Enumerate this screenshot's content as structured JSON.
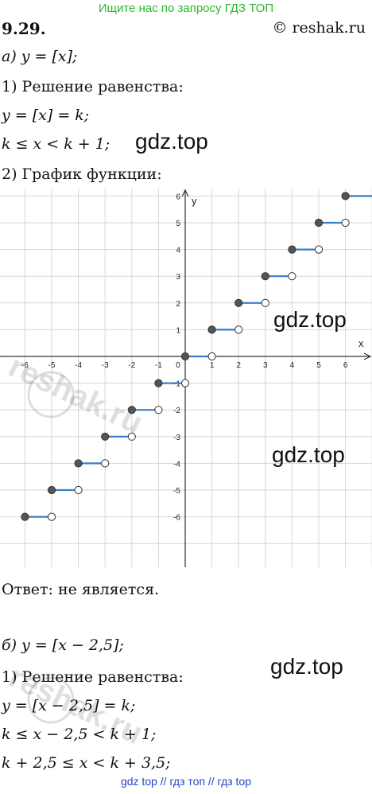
{
  "banner": "Ищите нас по запросу ГДЗ ТОП",
  "problem_number": "9.29.",
  "site": "© reshak.ru",
  "part_a": {
    "label": "а) y = [x];",
    "step1": "1) Решение равенства:",
    "eq1": "y = [x] = k;",
    "eq2": "k ≤ x < k + 1;",
    "step2": "2) График функции:"
  },
  "watermark": "gdz.top",
  "answer": "Ответ:  не является.",
  "part_b": {
    "label": "б) y = [x − 2,5];",
    "step1": "1) Решение равенства:",
    "eq1": "y = [x − 2,5] = k;",
    "eq2": "k ≤ x − 2,5 < k + 1;",
    "eq3": "k + 2,5 ≤ x < k + 3,5;"
  },
  "footer": "gdz top  //  гдз топ  //  гдз top",
  "reshak_watermark": "reshak.ru",
  "chart_data": {
    "type": "line",
    "xlabel": "x",
    "ylabel": "y",
    "xlim": [
      -7,
      7
    ],
    "ylim": [
      -7,
      7
    ],
    "xticks": [
      -6,
      -5,
      -4,
      -3,
      -2,
      -1,
      0,
      1,
      2,
      3,
      4,
      5,
      6
    ],
    "yticks": [
      -6,
      -5,
      -4,
      -3,
      -2,
      -1,
      1,
      2,
      3,
      4,
      5,
      6
    ],
    "grid": true,
    "segments": [
      {
        "x0": -6,
        "x1": -5,
        "y": -6
      },
      {
        "x0": -5,
        "x1": -4,
        "y": -5
      },
      {
        "x0": -4,
        "x1": -3,
        "y": -4
      },
      {
        "x0": -3,
        "x1": -2,
        "y": -3
      },
      {
        "x0": -2,
        "x1": -1,
        "y": -2
      },
      {
        "x0": -1,
        "x1": 0,
        "y": -1
      },
      {
        "x0": 0,
        "x1": 1,
        "y": 0
      },
      {
        "x0": 1,
        "x1": 2,
        "y": 1
      },
      {
        "x0": 2,
        "x1": 3,
        "y": 2
      },
      {
        "x0": 3,
        "x1": 4,
        "y": 3
      },
      {
        "x0": 4,
        "x1": 5,
        "y": 4
      },
      {
        "x0": 5,
        "x1": 6,
        "y": 5
      },
      {
        "x0": 6,
        "x1": 7,
        "y": 6
      }
    ],
    "line_color": "#3a7ec8",
    "closed_point_color": "#555555",
    "open_point_color": "#ffffff"
  }
}
